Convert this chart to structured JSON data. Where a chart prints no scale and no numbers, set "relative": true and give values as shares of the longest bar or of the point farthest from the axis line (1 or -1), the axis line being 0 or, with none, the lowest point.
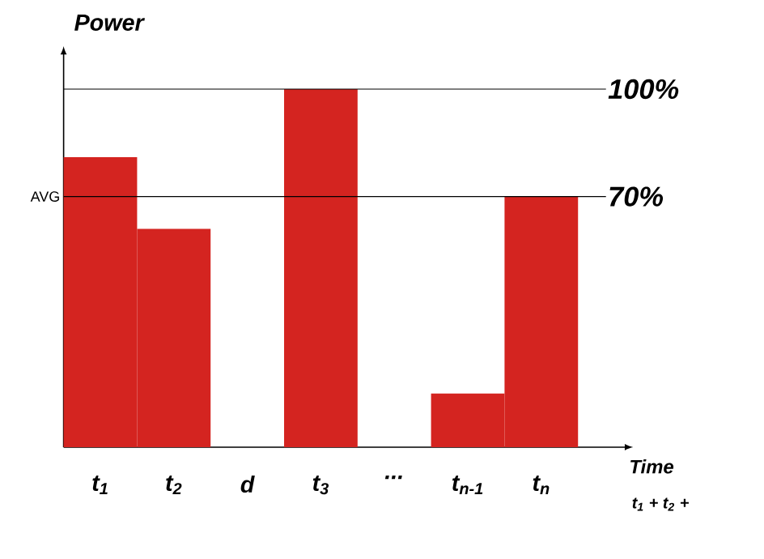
{
  "chart_data": {
    "type": "bar",
    "relative": true,
    "ylabel": "Power",
    "xlabel": "Time",
    "categories": [
      "t$_{1}$",
      "t$_{2}$",
      "d",
      "t$_{3}$",
      "...",
      "t$_{n-1}$",
      "t$_{n}$"
    ],
    "values": [
      0.81,
      0.61,
      null,
      1,
      null,
      0.15,
      0.7
    ],
    "color": "#d42420",
    "ref_lines": [
      {
        "axis": "y",
        "value": 1,
        "label": "100%"
      },
      {
        "axis": "y",
        "value": 0.7,
        "label": "70%"
      }
    ],
    "annotations": [
      "AVG",
      "t$_{1}$ + t$_{2}$ +"
    ]
  }
}
